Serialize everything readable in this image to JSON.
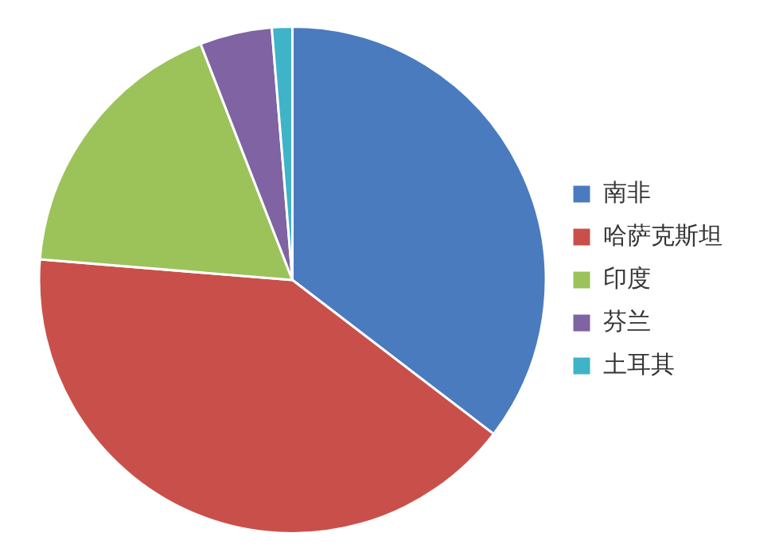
{
  "chart_data": {
    "type": "pie",
    "categories": [
      "南非",
      "哈萨克斯坦",
      "印度",
      "芬兰",
      "土耳其"
    ],
    "values": [
      35.4,
      40.9,
      17.8,
      4.6,
      1.3
    ],
    "colors": [
      "#4a7bbf",
      "#c9504a",
      "#9bc35a",
      "#7f63a2",
      "#3fb3c8"
    ],
    "legend": "right"
  }
}
